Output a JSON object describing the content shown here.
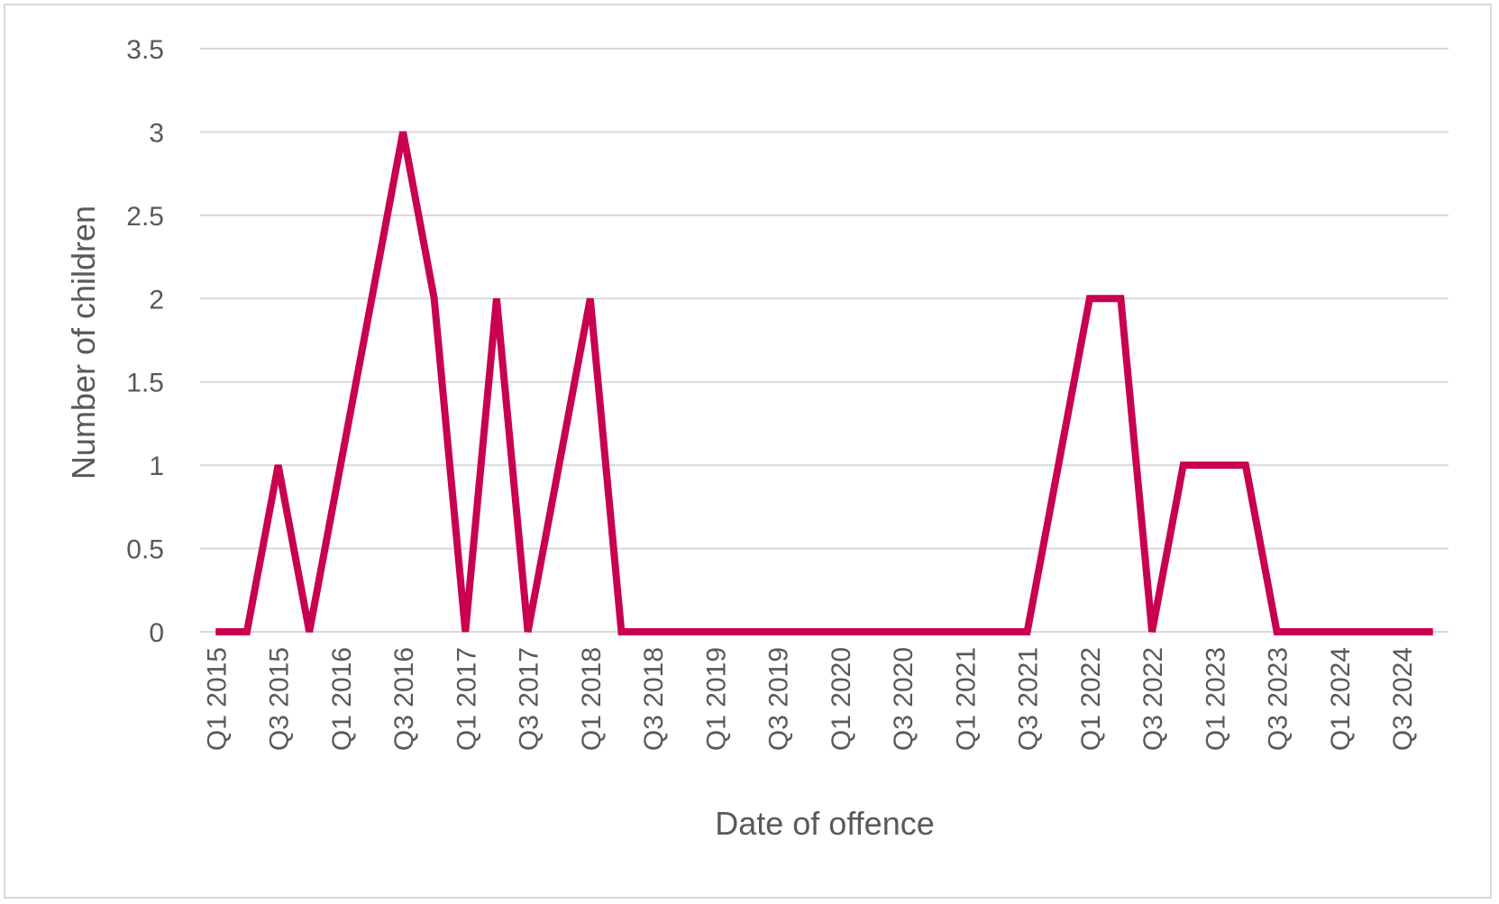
{
  "chart_data": {
    "type": "line",
    "title": "",
    "xlabel": "Date of offence",
    "ylabel": "Number of children",
    "ylim": [
      0,
      3.5
    ],
    "yticks": [
      "0",
      "0.5",
      "1",
      "1.5",
      "2",
      "2.5",
      "3",
      "3.5"
    ],
    "grid": true,
    "legend": "none",
    "categories": [
      "Q1 2015",
      "Q2 2015",
      "Q3 2015",
      "Q4 2015",
      "Q1 2016",
      "Q2 2016",
      "Q3 2016",
      "Q4 2016",
      "Q1 2017",
      "Q2 2017",
      "Q3 2017",
      "Q4 2017",
      "Q1 2018",
      "Q2 2018",
      "Q3 2018",
      "Q4 2018",
      "Q1 2019",
      "Q2 2019",
      "Q3 2019",
      "Q4 2019",
      "Q1 2020",
      "Q2 2020",
      "Q3 2020",
      "Q4 2020",
      "Q1 2021",
      "Q2 2021",
      "Q3 2021",
      "Q4 2021",
      "Q1 2022",
      "Q2 2022",
      "Q3 2022",
      "Q4 2022",
      "Q1 2023",
      "Q2 2023",
      "Q3 2023",
      "Q4 2023",
      "Q1 2024",
      "Q2 2024",
      "Q3 2024",
      "Q4 2024"
    ],
    "tick_labels": [
      "Q1 2015",
      "Q3 2015",
      "Q1 2016",
      "Q3 2016",
      "Q1 2017",
      "Q3 2017",
      "Q1 2018",
      "Q3 2018",
      "Q1 2019",
      "Q3 2019",
      "Q1 2020",
      "Q3 2020",
      "Q1 2021",
      "Q3 2021",
      "Q1 2022",
      "Q3 2022",
      "Q1 2023",
      "Q3 2023",
      "Q1 2024",
      "Q3 2024"
    ],
    "series": [
      {
        "color": "#c8004f",
        "values": [
          0,
          0,
          1,
          0,
          1,
          2,
          3,
          2,
          0,
          2,
          0,
          1,
          2,
          0,
          0,
          0,
          0,
          0,
          0,
          0,
          0,
          0,
          0,
          0,
          0,
          0,
          0,
          1,
          2,
          2,
          0,
          1,
          1,
          1,
          0,
          0,
          0,
          0,
          0,
          0
        ]
      }
    ]
  }
}
